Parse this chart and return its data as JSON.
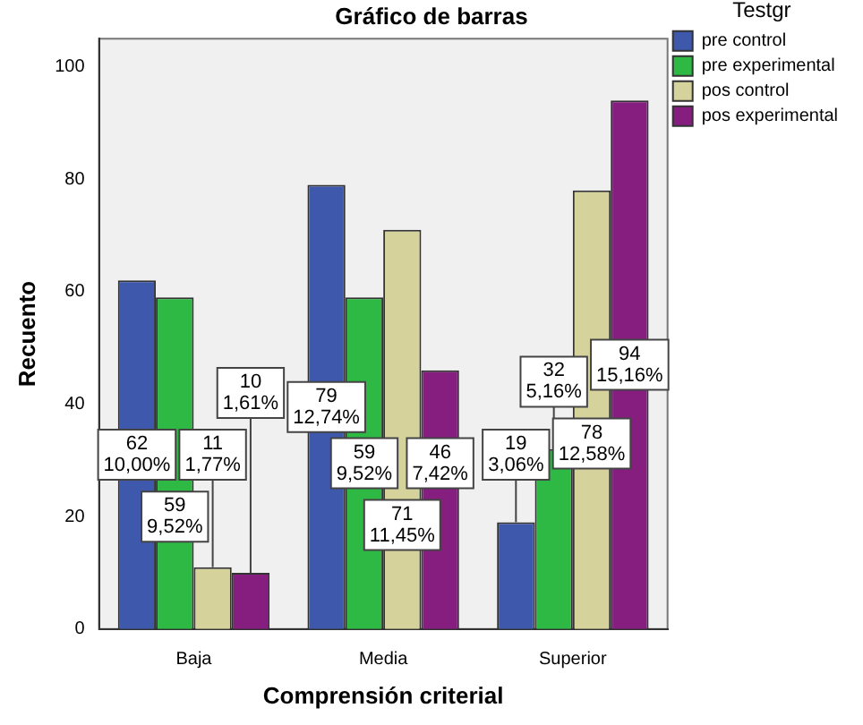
{
  "chart_data": {
    "type": "bar",
    "title": "Gráfico de barras",
    "xlabel": "Comprensión criterial",
    "ylabel": "Recuento",
    "legend_title": "Testgr",
    "legend": "right",
    "grid": false,
    "categories": [
      "Baja",
      "Media",
      "Superior"
    ],
    "series": [
      {
        "name": "pre control",
        "color": "#3e58ac",
        "values": [
          62,
          79,
          19
        ],
        "value_labels": [
          "62\n10,00%",
          "79\n12,74%",
          "19\n3,06%"
        ]
      },
      {
        "name": "pre experimental",
        "color": "#2eb844",
        "values": [
          59,
          59,
          32
        ],
        "value_labels": [
          "59\n9,52%",
          "59\n9,52%",
          "32\n5,16%"
        ]
      },
      {
        "name": "pos control",
        "color": "#d6d29c",
        "values": [
          11,
          71,
          78
        ],
        "value_labels": [
          "11\n1,77%",
          "71\n11,45%",
          "78\n12,58%"
        ]
      },
      {
        "name": "pos experimental",
        "color": "#861e80",
        "values": [
          10,
          46,
          94
        ],
        "value_labels": [
          "10\n1,61%",
          "46\n7,42%",
          "94\n15,16%"
        ]
      }
    ],
    "ylim": [
      0,
      105
    ],
    "yticks": [
      0,
      20,
      40,
      60,
      80,
      100
    ]
  }
}
